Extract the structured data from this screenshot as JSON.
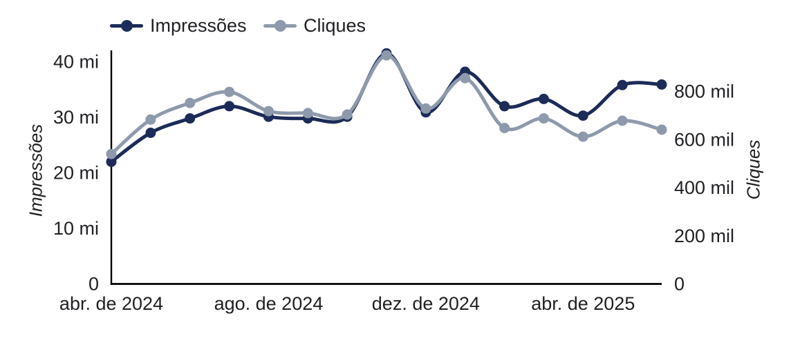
{
  "legend": {
    "items": [
      {
        "label": "Impressões"
      },
      {
        "label": "Cliques"
      }
    ]
  },
  "axes": {
    "left": {
      "title": "Impressões",
      "ticks": [
        {
          "value": 0,
          "label": "0"
        },
        {
          "value": 10,
          "label": "10 mi"
        },
        {
          "value": 20,
          "label": "20 mi"
        },
        {
          "value": 30,
          "label": "30 mi"
        },
        {
          "value": 40,
          "label": "40 mi"
        }
      ]
    },
    "right": {
      "title": "Cliques",
      "ticks": [
        {
          "value": 0,
          "label": "0"
        },
        {
          "value": 200,
          "label": "200 mil"
        },
        {
          "value": 400,
          "label": "400 mil"
        },
        {
          "value": 600,
          "label": "600 mil"
        },
        {
          "value": 800,
          "label": "800 mil"
        }
      ]
    },
    "x": {
      "ticks": [
        {
          "index": 0,
          "label": "abr. de 2024"
        },
        {
          "index": 4,
          "label": "ago. de 2024"
        },
        {
          "index": 8,
          "label": "dez. de 2024"
        },
        {
          "index": 12,
          "label": "abr. de 2025"
        }
      ]
    }
  },
  "chart_data": {
    "type": "line",
    "smooth": true,
    "grid": false,
    "legend_position": "top",
    "n_points": 15,
    "point_interval": "monthly",
    "left_axis_range": [
      0,
      40
    ],
    "right_axis_range": [
      0,
      800
    ],
    "series": [
      {
        "name": "Impressões",
        "axis": "left",
        "unit": "mi",
        "color": "#1c2b57",
        "values": [
          22,
          27.2,
          29.8,
          32,
          30.1,
          29.8,
          30.1,
          41.5,
          30.9,
          38.2,
          32,
          33.3,
          30.3,
          35.8,
          35.9
        ]
      },
      {
        "name": "Cliques",
        "axis": "right",
        "unit": "mil",
        "color": "#8e9aab",
        "values": [
          540,
          683,
          752,
          798,
          718,
          710,
          704,
          950,
          729,
          855,
          648,
          688,
          612,
          678,
          641
        ]
      }
    ]
  },
  "colors": {
    "text": "#202124",
    "axis_line": "#000000"
  }
}
